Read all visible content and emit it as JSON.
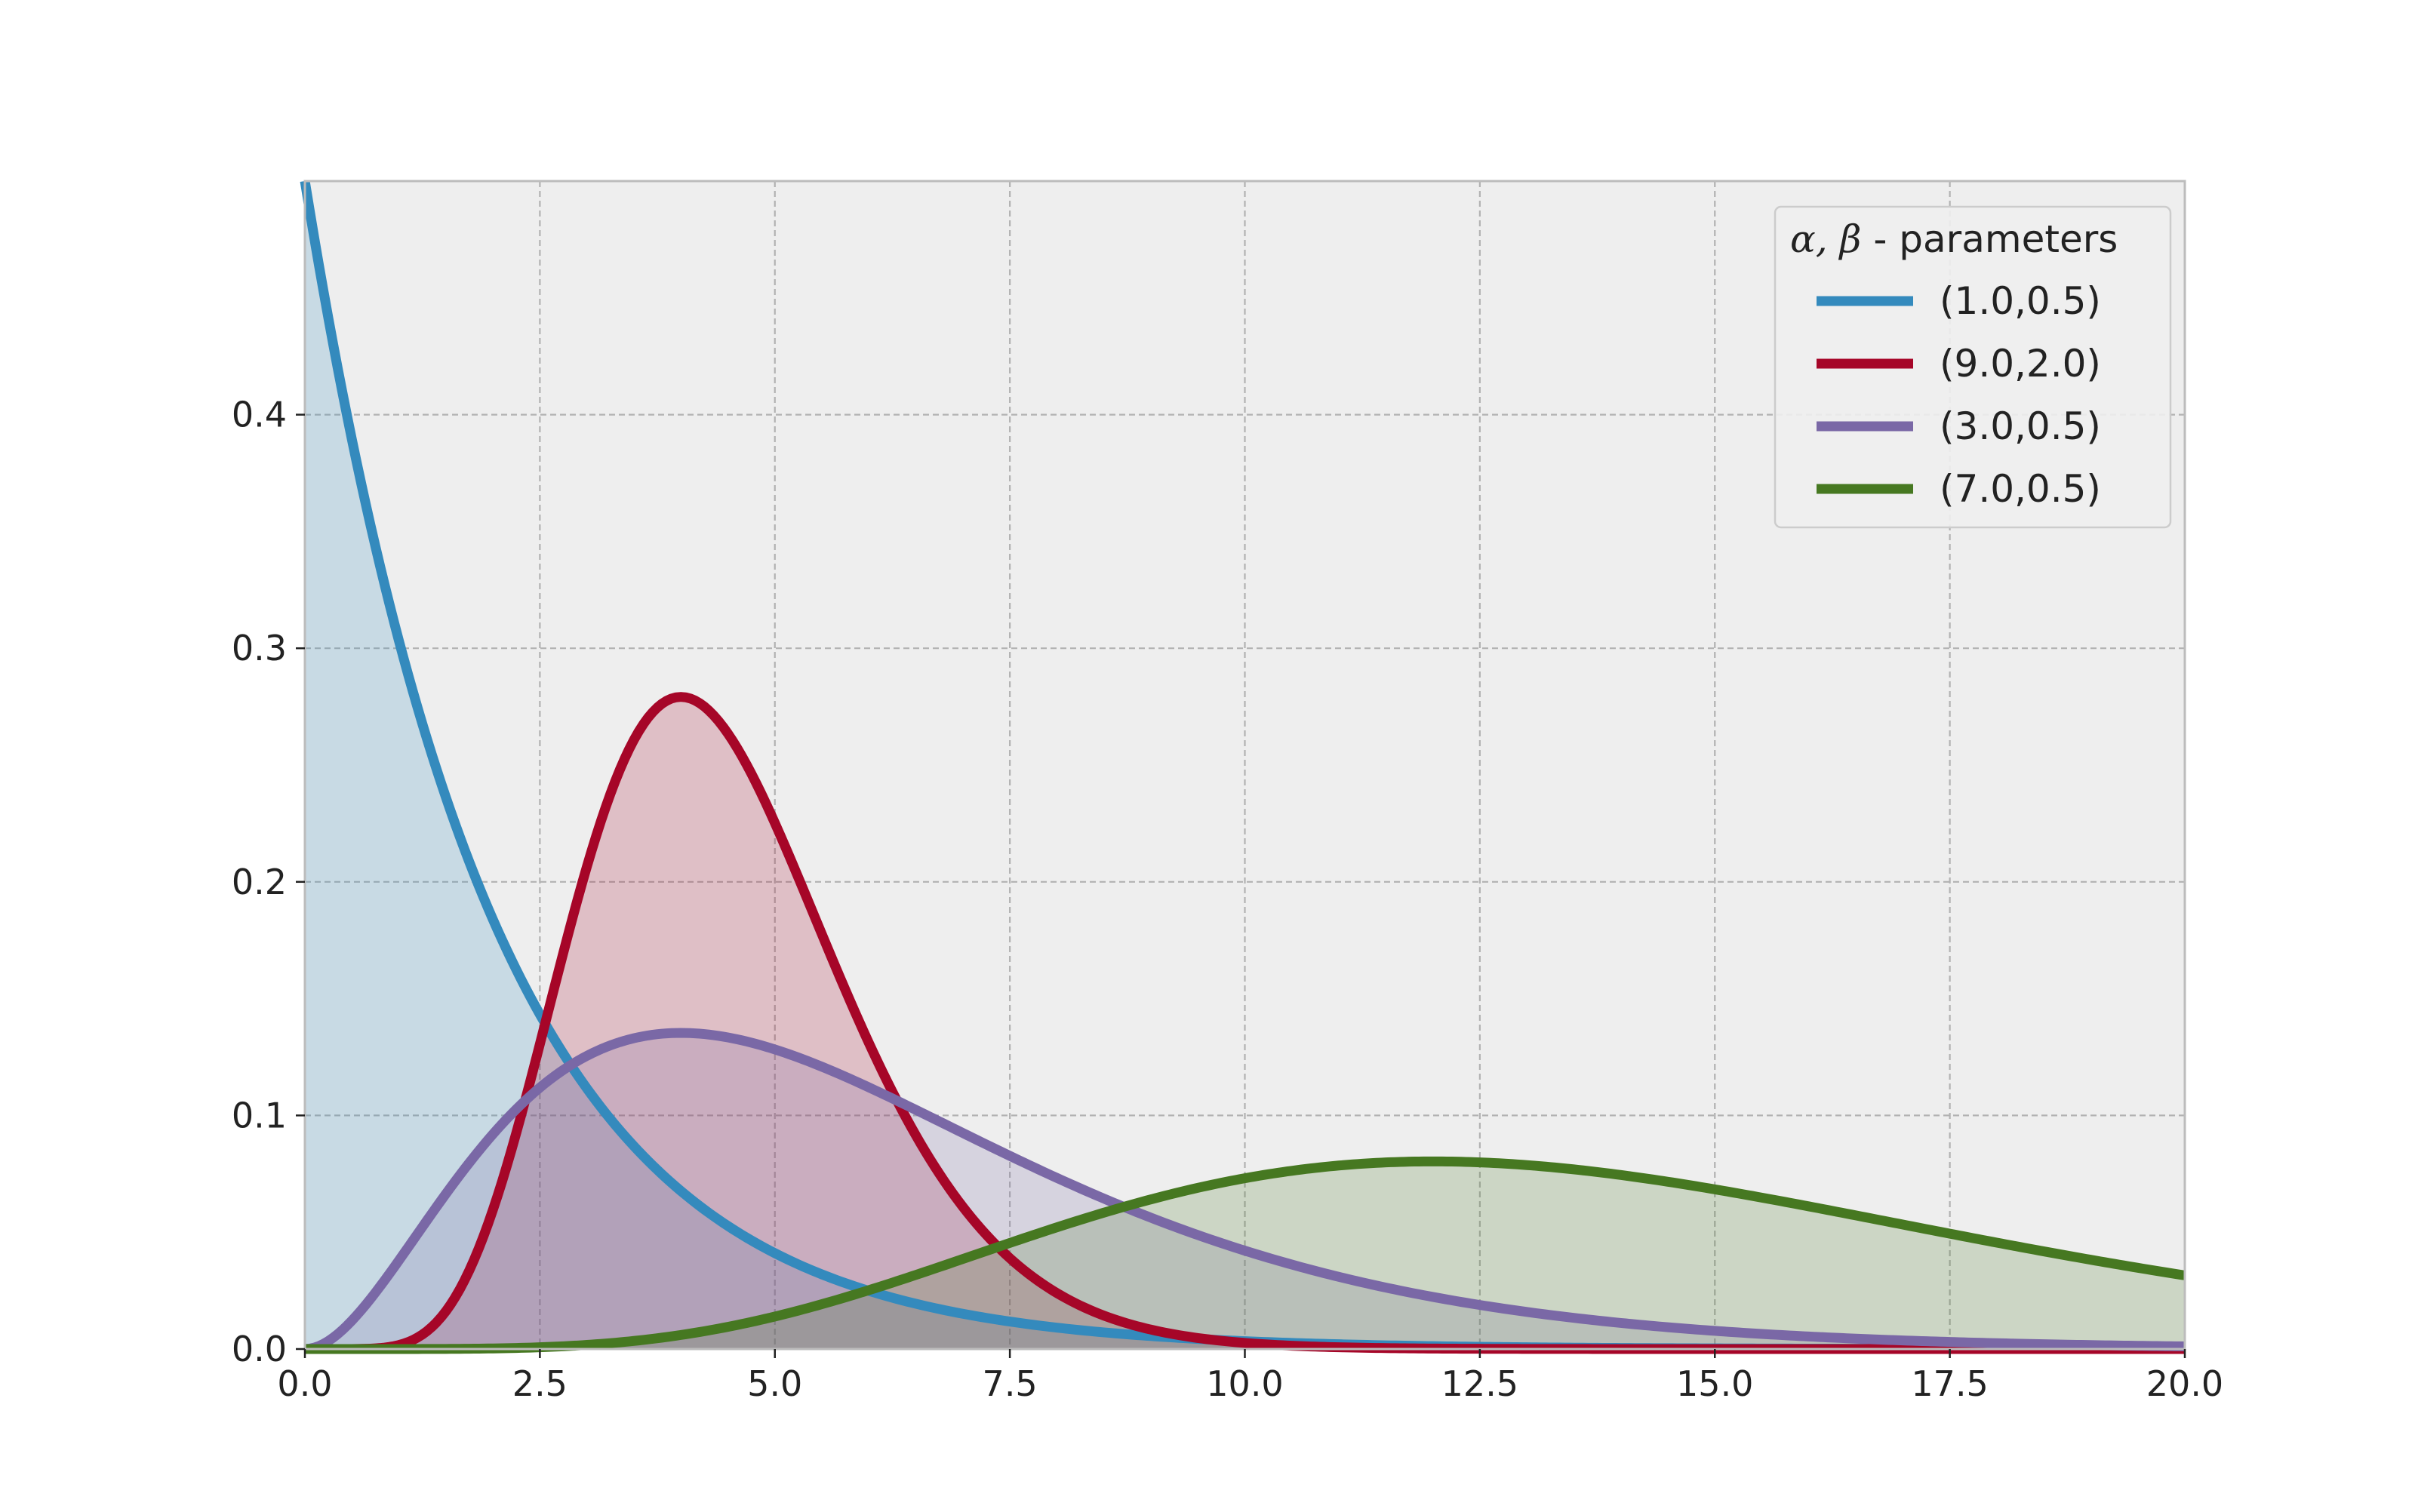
{
  "chart_data": {
    "type": "area",
    "title": "",
    "xlabel": "",
    "ylabel": "",
    "xlim": [
      0,
      20
    ],
    "ylim": [
      0,
      0.5
    ],
    "xticks": [
      "0.0",
      "2.5",
      "5.0",
      "7.5",
      "10.0",
      "12.5",
      "15.0",
      "17.5",
      "20.0"
    ],
    "yticks": [
      "0.0",
      "0.1",
      "0.2",
      "0.3",
      "0.4"
    ],
    "grid": true,
    "legend": {
      "placement": "top-right",
      "title_symbols": "α, β",
      "title_text": " - parameters"
    },
    "series": [
      {
        "name": "(1.0,0.5)",
        "color": "#348abd",
        "distribution": "gamma pdf, shape 1.0, rate 0.5",
        "x": [
          0,
          1,
          2,
          3,
          4,
          5,
          6,
          8,
          10,
          12,
          15,
          20
        ],
        "y": [
          0.5,
          0.303,
          0.184,
          0.112,
          0.068,
          0.041,
          0.025,
          0.009,
          0.003,
          0.001,
          0.0003,
          2e-05
        ]
      },
      {
        "name": "(9.0,2.0)",
        "color": "#a60628",
        "distribution": "gamma pdf, shape 9.0, rate 2.0",
        "x": [
          0,
          1,
          2,
          3,
          4,
          5,
          6,
          7,
          8,
          10,
          12,
          20
        ],
        "y": [
          0.0,
          0.0019,
          0.0595,
          0.211,
          0.2792,
          0.2069,
          0.1009,
          0.0358,
          0.0099,
          0.0004,
          1e-05,
          0.0
        ]
      },
      {
        "name": "(3.0,0.5)",
        "color": "#7a68a6",
        "distribution": "gamma pdf, shape 3.0, rate 0.5",
        "x": [
          0,
          1,
          2,
          3,
          4,
          5,
          6,
          8,
          10,
          12,
          15,
          20
        ],
        "y": [
          0.0,
          0.076,
          0.092,
          0.126,
          0.135,
          0.128,
          0.112,
          0.073,
          0.042,
          0.022,
          0.007,
          0.001
        ]
      },
      {
        "name": "(7.0,0.5)",
        "color": "#467821",
        "distribution": "gamma pdf, shape 7.0, rate 0.5",
        "x": [
          0,
          2,
          4,
          6,
          8,
          10,
          12,
          14,
          16,
          18,
          20
        ],
        "y": [
          0.0,
          0.0001,
          0.005,
          0.025,
          0.056,
          0.077,
          0.08,
          0.07,
          0.054,
          0.041,
          0.032
        ]
      }
    ],
    "style": {
      "axes_facecolor": "#eeeeee",
      "frame_color": "#bcbcbc",
      "grid_color": "#b2b2b2",
      "fill_alpha": 0.2
    }
  }
}
